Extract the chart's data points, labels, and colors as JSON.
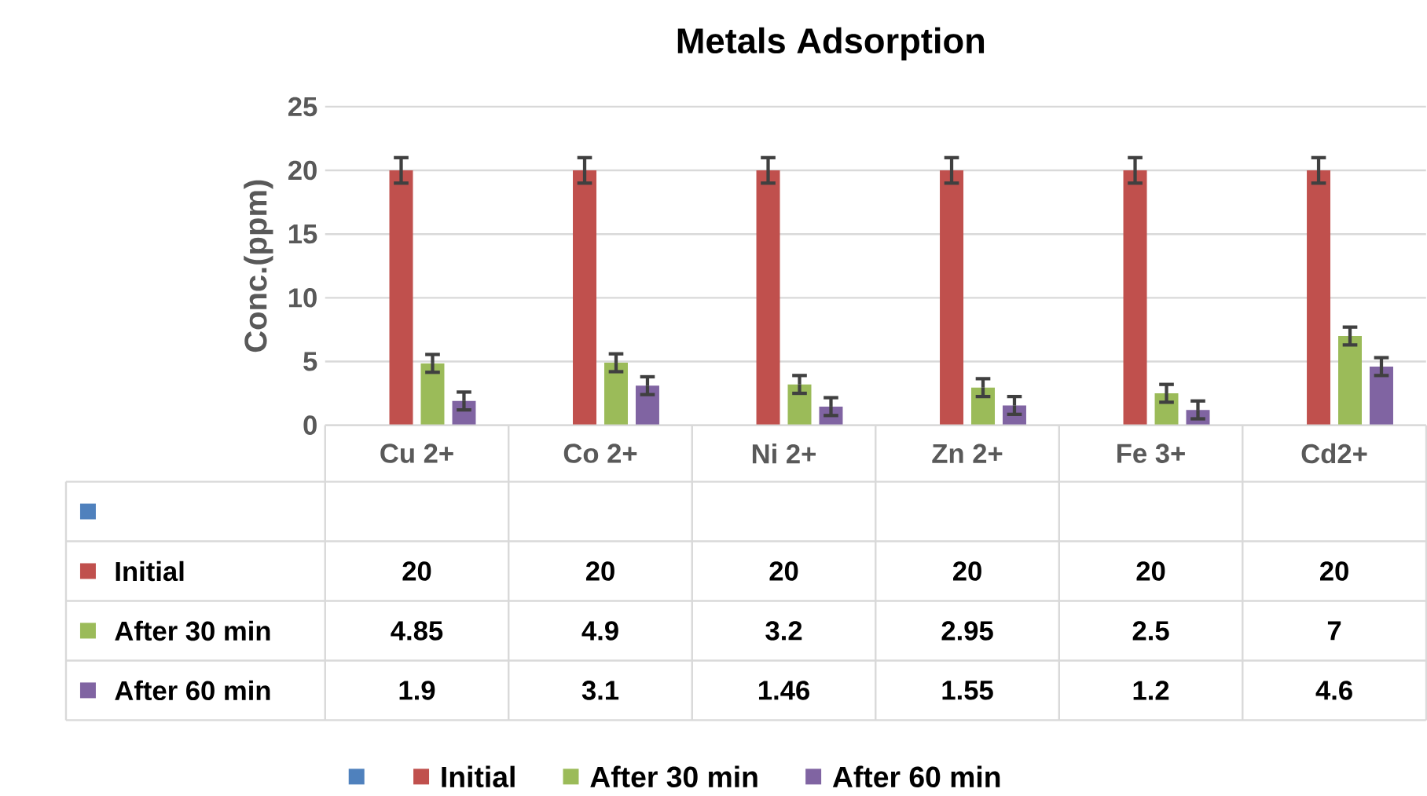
{
  "chart_data": {
    "type": "bar",
    "title": "Metals Adsorption",
    "ylabel": "Conc.(ppm)",
    "categories": [
      "Cu 2+",
      "Co 2+",
      "Ni 2+",
      "Zn 2+",
      "Fe 3+",
      "Cd2+"
    ],
    "series": [
      {
        "color": "#4f81bd",
        "values": [
          null,
          null,
          null,
          null,
          null,
          null
        ]
      },
      {
        "name": "Initial",
        "color": "#c0504d",
        "values": [
          20,
          20,
          20,
          20,
          20,
          20
        ],
        "errors": [
          1,
          1,
          1,
          1,
          1,
          1
        ]
      },
      {
        "name": "After 30 min",
        "color": "#9bbb59",
        "values": [
          4.85,
          4.9,
          3.2,
          2.95,
          2.5,
          7
        ],
        "errors": [
          0.7,
          0.7,
          0.7,
          0.7,
          0.7,
          0.7
        ]
      },
      {
        "name": "After 60 min",
        "color": "#8064a2",
        "values": [
          1.9,
          3.1,
          1.46,
          1.55,
          1.2,
          4.6
        ],
        "errors": [
          0.7,
          0.7,
          0.7,
          0.7,
          0.7,
          0.7
        ]
      }
    ],
    "ylim": [
      0,
      25
    ],
    "yticks": [
      0,
      5,
      10,
      15,
      20,
      25
    ],
    "grid": "y",
    "legend": "bottom",
    "data_labels": true
  }
}
